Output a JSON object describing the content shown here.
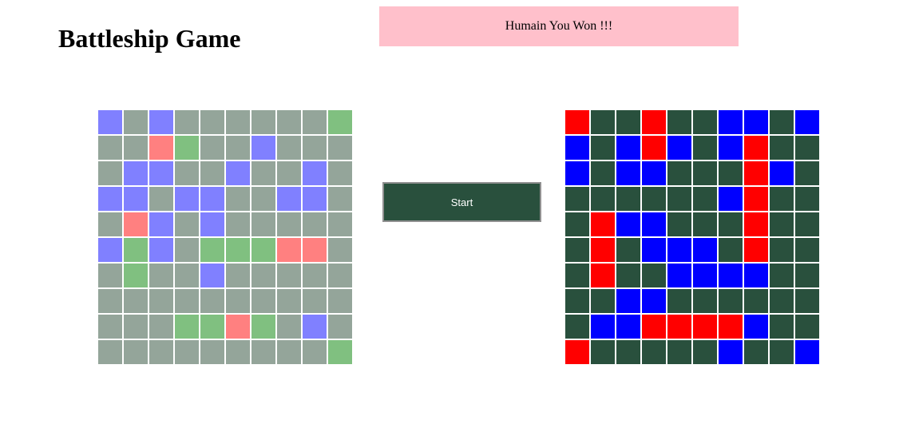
{
  "title": "Battleship Game",
  "status_message": "Humain You Won !!!",
  "start_button_label": "Start",
  "colors": {
    "banner_bg": "#ffc0cb",
    "player_board": {
      "w": "#94a59a",
      "b": "#8080ff",
      "g": "#80c080",
      "r": "#ff8080"
    },
    "computer_board": {
      "d": "#29503d",
      "r": "#ff0000",
      "b": "#0000ff"
    },
    "start_button_bg": "#29503d"
  },
  "player_board": [
    [
      "b",
      "w",
      "b",
      "w",
      "w",
      "w",
      "w",
      "w",
      "w",
      "g"
    ],
    [
      "w",
      "w",
      "r",
      "g",
      "w",
      "w",
      "b",
      "w",
      "w",
      "w"
    ],
    [
      "w",
      "b",
      "b",
      "w",
      "w",
      "b",
      "w",
      "w",
      "b",
      "w"
    ],
    [
      "b",
      "b",
      "w",
      "b",
      "b",
      "w",
      "w",
      "b",
      "b",
      "w"
    ],
    [
      "w",
      "r",
      "b",
      "w",
      "b",
      "w",
      "w",
      "w",
      "w",
      "w"
    ],
    [
      "b",
      "g",
      "b",
      "w",
      "g",
      "g",
      "g",
      "r",
      "r",
      "w"
    ],
    [
      "w",
      "g",
      "w",
      "w",
      "b",
      "w",
      "w",
      "w",
      "w",
      "w"
    ],
    [
      "w",
      "w",
      "w",
      "w",
      "w",
      "w",
      "w",
      "w",
      "w",
      "w"
    ],
    [
      "w",
      "w",
      "w",
      "g",
      "g",
      "r",
      "g",
      "w",
      "b",
      "w"
    ],
    [
      "w",
      "w",
      "w",
      "w",
      "w",
      "w",
      "w",
      "w",
      "w",
      "g"
    ]
  ],
  "computer_board": [
    [
      "r",
      "d",
      "d",
      "r",
      "d",
      "d",
      "b",
      "b",
      "d",
      "b"
    ],
    [
      "b",
      "d",
      "b",
      "r",
      "b",
      "d",
      "b",
      "r",
      "d",
      "d"
    ],
    [
      "b",
      "d",
      "b",
      "b",
      "d",
      "d",
      "d",
      "r",
      "b",
      "d"
    ],
    [
      "d",
      "d",
      "d",
      "d",
      "d",
      "d",
      "b",
      "r",
      "d",
      "d"
    ],
    [
      "d",
      "r",
      "b",
      "b",
      "d",
      "d",
      "d",
      "r",
      "d",
      "d"
    ],
    [
      "d",
      "r",
      "d",
      "b",
      "b",
      "b",
      "d",
      "r",
      "d",
      "d"
    ],
    [
      "d",
      "r",
      "d",
      "d",
      "b",
      "b",
      "b",
      "b",
      "d",
      "d"
    ],
    [
      "d",
      "d",
      "b",
      "b",
      "d",
      "d",
      "d",
      "d",
      "d",
      "d"
    ],
    [
      "d",
      "b",
      "b",
      "r",
      "r",
      "r",
      "r",
      "b",
      "d",
      "d"
    ],
    [
      "r",
      "d",
      "d",
      "d",
      "d",
      "d",
      "b",
      "d",
      "d",
      "b"
    ]
  ]
}
